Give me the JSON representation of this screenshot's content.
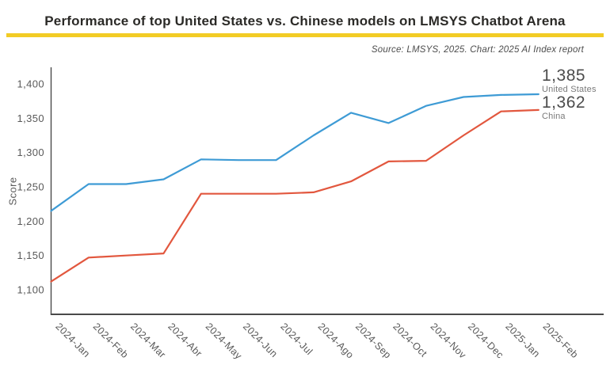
{
  "header": {
    "title": "Performance of top United States vs. Chinese models on LMSYS Chatbot Arena",
    "source_note": "Source: LMSYS, 2025. Chart: 2025 AI Index report",
    "accent_color": "#f2cc25"
  },
  "chart_data": {
    "type": "line",
    "title": "Performance of top United States vs. Chinese models on LMSYS Chatbot Arena",
    "xlabel": "",
    "ylabel": "Score",
    "grid": false,
    "legend_position": "end-of-line-labels-right",
    "categories": [
      "2024-Jan",
      "2024-Feb",
      "2024-Mar",
      "2024-Abr",
      "2024-May",
      "2024-Jun",
      "2024-Jul",
      "2024-Ago",
      "2024-Sep",
      "2024-Oct",
      "2024-Nov",
      "2024-Dec",
      "2025-Jan",
      "2025-Feb"
    ],
    "yticks": [
      1100,
      1150,
      1200,
      1250,
      1300,
      1350,
      1400
    ],
    "ytick_labels": [
      "1,100",
      "1,150",
      "1,200",
      "1,250",
      "1,300",
      "1,350",
      "1,400"
    ],
    "ylim": [
      1065,
      1425
    ],
    "series": [
      {
        "name": "United States",
        "color": "#3e9bd5",
        "end_label": "1,385",
        "values": [
          1215,
          1254,
          1254,
          1261,
          1290,
          1289,
          1289,
          1325,
          1358,
          1343,
          1368,
          1381,
          1384,
          1385
        ]
      },
      {
        "name": "China",
        "color": "#e2573e",
        "end_label": "1,362",
        "values": [
          1112,
          1147,
          1150,
          1153,
          1240,
          1240,
          1240,
          1242,
          1258,
          1287,
          1288,
          1325,
          1360,
          1362
        ]
      }
    ]
  }
}
